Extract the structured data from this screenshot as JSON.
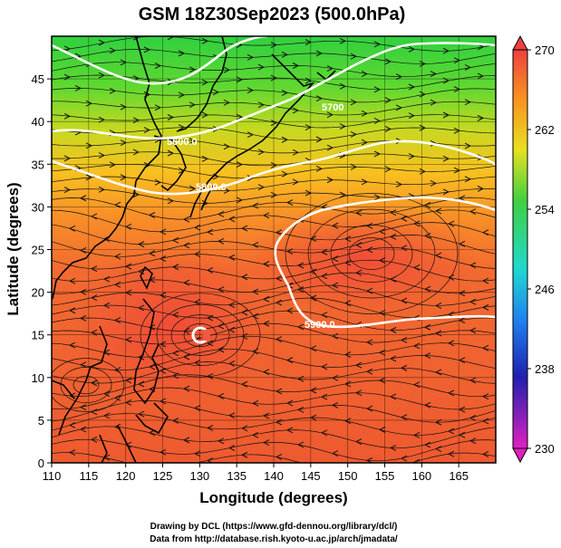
{
  "title": "GSM 18Z30Sep2023 (500.0hPa)",
  "xaxis": {
    "label": "Longitude (degrees)",
    "min": 110,
    "max": 170,
    "ticks": [
      "110",
      "115",
      "120",
      "125",
      "130",
      "135",
      "140",
      "145",
      "150",
      "155",
      "160",
      "165"
    ]
  },
  "yaxis": {
    "label": "Latitude  (degrees)",
    "min": 0,
    "max": 50,
    "ticks": [
      "0",
      "5",
      "10",
      "15",
      "20",
      "25",
      "30",
      "35",
      "40",
      "45"
    ]
  },
  "colorbar": {
    "min": 230,
    "max": 270,
    "labels": [
      "270",
      "262",
      "254",
      "246",
      "238",
      "230"
    ]
  },
  "contour_labels": [
    {
      "text": "5600.0",
      "lon": 129,
      "lat": 40
    },
    {
      "text": "5800.0",
      "lon": 134,
      "lat": 35
    },
    {
      "text": "5900.0",
      "lon": 148,
      "lat": 19
    },
    {
      "text": "5700",
      "lon": 150,
      "lat": 43
    }
  ],
  "typhoon_symbol": {
    "lon": 130,
    "lat": 16.5
  },
  "credits": {
    "line1": "Drawing by DCL (https://www.gfd-dennou.org/library/dcl/)",
    "line2": "Data from http://database.rish.kyoto-u.ac.jp/arch/jmadata/"
  },
  "colors": {
    "warm": "#f05030",
    "cold": "#20c040",
    "contour": "#ffffff"
  }
}
